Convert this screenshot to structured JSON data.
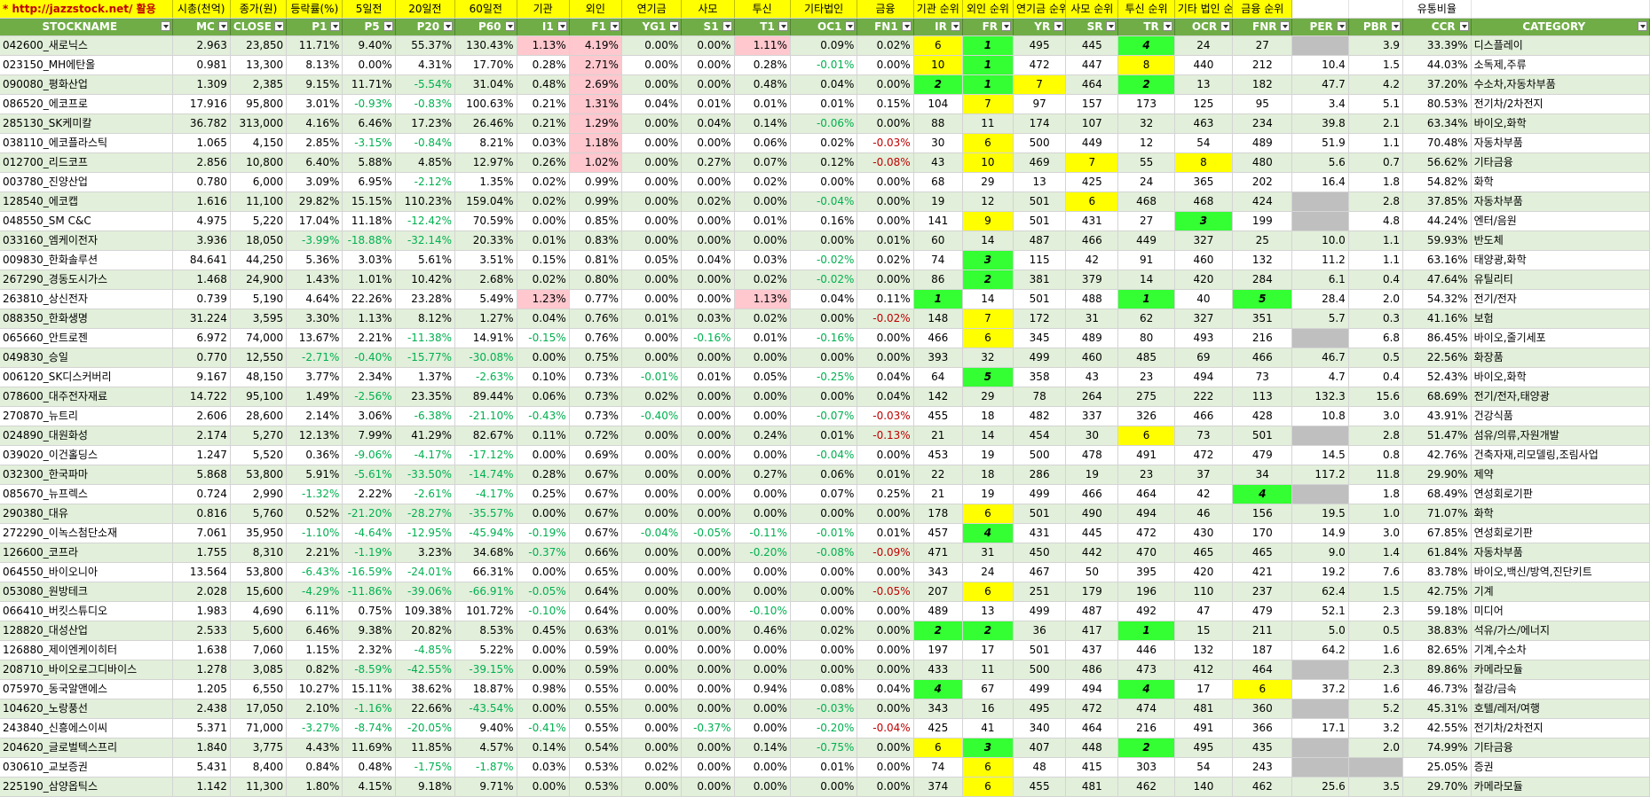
{
  "captions": [
    {
      "text": "* http://jazzstock.net/ 활용",
      "cls": "link",
      "name": "site-link"
    },
    {
      "text": "시총(천억)",
      "cls": "",
      "name": "caption-mc"
    },
    {
      "text": "종가(원)",
      "cls": "",
      "name": "caption-close"
    },
    {
      "text": "등락률(%)",
      "cls": "",
      "name": "caption-p1"
    },
    {
      "text": "5일전",
      "cls": "",
      "name": "caption-p5"
    },
    {
      "text": "20일전",
      "cls": "",
      "name": "caption-p20"
    },
    {
      "text": "60일전",
      "cls": "",
      "name": "caption-p60"
    },
    {
      "text": "기관",
      "cls": "",
      "name": "caption-i1"
    },
    {
      "text": "외인",
      "cls": "",
      "name": "caption-f1"
    },
    {
      "text": "연기금",
      "cls": "",
      "name": "caption-yg1"
    },
    {
      "text": "사모",
      "cls": "",
      "name": "caption-s1"
    },
    {
      "text": "투신",
      "cls": "",
      "name": "caption-t1"
    },
    {
      "text": "기타법인",
      "cls": "",
      "name": "caption-oc1"
    },
    {
      "text": "금융",
      "cls": "",
      "name": "caption-fn1"
    },
    {
      "text": "기관 순위",
      "cls": "",
      "name": "caption-ir"
    },
    {
      "text": "외인 순위",
      "cls": "",
      "name": "caption-fr"
    },
    {
      "text": "연기금 순위",
      "cls": "",
      "name": "caption-yr"
    },
    {
      "text": "사모 순위",
      "cls": "",
      "name": "caption-sr"
    },
    {
      "text": "투신 순위",
      "cls": "",
      "name": "caption-tr"
    },
    {
      "text": "기타 법인 순위",
      "cls": "",
      "name": "caption-ocr"
    },
    {
      "text": "금융 순위",
      "cls": "",
      "name": "caption-fnr"
    },
    {
      "text": "",
      "cls": "blank",
      "name": "caption-per"
    },
    {
      "text": "",
      "cls": "blank",
      "name": "caption-pbr"
    },
    {
      "text": "유통비율",
      "cls": "blank",
      "name": "caption-ccr"
    },
    {
      "text": "",
      "cls": "blank",
      "name": "caption-category"
    }
  ],
  "columns": [
    "STOCKNAME",
    "MC",
    "CLOSE",
    "P1",
    "P5",
    "P20",
    "P60",
    "I1",
    "F1",
    "YG1",
    "S1",
    "T1",
    "OC1",
    "FN1",
    "IR",
    "FR",
    "YR",
    "SR",
    "TR",
    "OCR",
    "FNR",
    "PER",
    "PBR",
    "CCR",
    "CATEGORY"
  ],
  "rows": [
    [
      "042600_새로닉스",
      "2.963",
      "23,850",
      "11.71%",
      "9.40%",
      "55.37%",
      "130.43%",
      "1.13%",
      "4.19%",
      "0.00%",
      "0.00%",
      "1.11%",
      "0.09%",
      "0.02%",
      "6",
      "1",
      "495",
      "445",
      "4",
      "24",
      "27",
      "",
      "3.9",
      "33.39%",
      "디스플레이"
    ],
    [
      "023150_MH에탄올",
      "0.981",
      "13,300",
      "8.13%",
      "0.00%",
      "4.31%",
      "17.70%",
      "0.28%",
      "2.71%",
      "0.00%",
      "0.00%",
      "0.28%",
      "-0.01%",
      "0.00%",
      "10",
      "1",
      "472",
      "447",
      "8",
      "440",
      "212",
      "10.4",
      "1.5",
      "44.03%",
      "소독제,주류"
    ],
    [
      "090080_평화산업",
      "1.309",
      "2,385",
      "9.15%",
      "11.71%",
      "-5.54%",
      "31.04%",
      "0.48%",
      "2.69%",
      "0.00%",
      "0.00%",
      "0.48%",
      "0.04%",
      "0.00%",
      "2",
      "1",
      "7",
      "464",
      "2",
      "13",
      "182",
      "47.7",
      "4.2",
      "37.20%",
      "수소차,자동차부품"
    ],
    [
      "086520_에코프로",
      "17.916",
      "95,800",
      "3.01%",
      "-0.93%",
      "-0.83%",
      "100.63%",
      "0.21%",
      "1.31%",
      "0.04%",
      "0.01%",
      "0.01%",
      "0.01%",
      "0.15%",
      "104",
      "7",
      "97",
      "157",
      "173",
      "125",
      "95",
      "3.4",
      "5.1",
      "80.53%",
      "전기차/2차전지"
    ],
    [
      "285130_SK케미칼",
      "36.782",
      "313,000",
      "4.16%",
      "6.46%",
      "17.23%",
      "26.46%",
      "0.21%",
      "1.29%",
      "0.00%",
      "0.04%",
      "0.14%",
      "-0.06%",
      "0.00%",
      "88",
      "11",
      "174",
      "107",
      "32",
      "463",
      "234",
      "39.8",
      "2.1",
      "63.34%",
      "바이오,화학"
    ],
    [
      "038110_에코플라스틱",
      "1.065",
      "4,150",
      "2.85%",
      "-3.15%",
      "-0.84%",
      "8.21%",
      "0.03%",
      "1.18%",
      "0.00%",
      "0.00%",
      "0.06%",
      "0.02%",
      "-0.03%",
      "30",
      "6",
      "500",
      "449",
      "12",
      "54",
      "489",
      "51.9",
      "1.1",
      "70.48%",
      "자동차부품"
    ],
    [
      "012700_리드코프",
      "2.856",
      "10,800",
      "6.40%",
      "5.88%",
      "4.85%",
      "12.97%",
      "0.26%",
      "1.02%",
      "0.00%",
      "0.27%",
      "0.07%",
      "0.12%",
      "-0.08%",
      "43",
      "10",
      "469",
      "7",
      "55",
      "8",
      "480",
      "5.6",
      "0.7",
      "56.62%",
      "기타금융"
    ],
    [
      "003780_진양산업",
      "0.780",
      "6,000",
      "3.09%",
      "6.95%",
      "-2.12%",
      "1.35%",
      "0.02%",
      "0.99%",
      "0.00%",
      "0.00%",
      "0.02%",
      "0.00%",
      "0.00%",
      "68",
      "29",
      "13",
      "425",
      "24",
      "365",
      "202",
      "16.4",
      "1.8",
      "54.82%",
      "화학"
    ],
    [
      "128540_에코캡",
      "1.616",
      "11,100",
      "29.82%",
      "15.15%",
      "110.23%",
      "159.04%",
      "0.02%",
      "0.99%",
      "0.00%",
      "0.02%",
      "0.00%",
      "-0.04%",
      "0.00%",
      "19",
      "12",
      "501",
      "6",
      "468",
      "468",
      "424",
      "",
      "2.8",
      "37.85%",
      "자동차부품"
    ],
    [
      "048550_SM C&C",
      "4.975",
      "5,220",
      "17.04%",
      "11.18%",
      "-12.42%",
      "70.59%",
      "0.00%",
      "0.85%",
      "0.00%",
      "0.00%",
      "0.01%",
      "0.16%",
      "0.00%",
      "141",
      "9",
      "501",
      "431",
      "27",
      "3",
      "199",
      "",
      "4.8",
      "44.24%",
      "엔터/음원"
    ],
    [
      "033160_엠케이전자",
      "3.936",
      "18,050",
      "-3.99%",
      "-18.88%",
      "-32.14%",
      "20.33%",
      "0.01%",
      "0.83%",
      "0.00%",
      "0.00%",
      "0.00%",
      "0.00%",
      "0.01%",
      "60",
      "14",
      "487",
      "466",
      "449",
      "327",
      "25",
      "10.0",
      "1.1",
      "59.93%",
      "반도체"
    ],
    [
      "009830_한화솔루션",
      "84.641",
      "44,250",
      "5.36%",
      "3.03%",
      "5.61%",
      "3.51%",
      "0.15%",
      "0.81%",
      "0.05%",
      "0.04%",
      "0.03%",
      "-0.02%",
      "0.02%",
      "74",
      "3",
      "115",
      "42",
      "91",
      "460",
      "132",
      "11.2",
      "1.1",
      "63.16%",
      "태양광,화학"
    ],
    [
      "267290_경동도시가스",
      "1.468",
      "24,900",
      "1.43%",
      "1.01%",
      "10.42%",
      "2.68%",
      "0.02%",
      "0.80%",
      "0.00%",
      "0.00%",
      "0.02%",
      "-0.02%",
      "0.00%",
      "86",
      "2",
      "381",
      "379",
      "14",
      "420",
      "284",
      "6.1",
      "0.4",
      "47.64%",
      "유틸리티"
    ],
    [
      "263810_상신전자",
      "0.739",
      "5,190",
      "4.64%",
      "22.26%",
      "23.28%",
      "5.49%",
      "1.23%",
      "0.77%",
      "0.00%",
      "0.00%",
      "1.13%",
      "0.04%",
      "0.11%",
      "1",
      "14",
      "501",
      "488",
      "1",
      "40",
      "5",
      "28.4",
      "2.0",
      "54.32%",
      "전기/전자"
    ],
    [
      "088350_한화생명",
      "31.224",
      "3,595",
      "3.30%",
      "1.13%",
      "8.12%",
      "1.27%",
      "0.04%",
      "0.76%",
      "0.01%",
      "0.03%",
      "0.02%",
      "0.00%",
      "-0.02%",
      "148",
      "7",
      "172",
      "31",
      "62",
      "327",
      "351",
      "5.7",
      "0.3",
      "41.16%",
      "보험"
    ],
    [
      "065660_안트로젠",
      "6.972",
      "74,000",
      "13.67%",
      "2.21%",
      "-11.38%",
      "14.91%",
      "-0.15%",
      "0.76%",
      "0.00%",
      "-0.16%",
      "0.01%",
      "-0.16%",
      "0.00%",
      "466",
      "6",
      "345",
      "489",
      "80",
      "493",
      "216",
      "",
      "6.8",
      "86.45%",
      "바이오,줄기세포"
    ],
    [
      "049830_승일",
      "0.770",
      "12,550",
      "-2.71%",
      "-0.40%",
      "-15.77%",
      "-30.08%",
      "0.00%",
      "0.75%",
      "0.00%",
      "0.00%",
      "0.00%",
      "0.00%",
      "0.00%",
      "393",
      "32",
      "499",
      "460",
      "485",
      "69",
      "466",
      "46.7",
      "0.5",
      "22.56%",
      "화장품"
    ],
    [
      "006120_SK디스커버리",
      "9.167",
      "48,150",
      "3.77%",
      "2.34%",
      "1.37%",
      "-2.63%",
      "0.10%",
      "0.73%",
      "-0.01%",
      "0.01%",
      "0.05%",
      "-0.25%",
      "0.04%",
      "64",
      "5",
      "358",
      "43",
      "23",
      "494",
      "73",
      "4.7",
      "0.4",
      "52.43%",
      "바이오,화학"
    ],
    [
      "078600_대주전자재료",
      "14.722",
      "95,100",
      "1.49%",
      "-2.56%",
      "23.35%",
      "89.44%",
      "0.06%",
      "0.73%",
      "0.02%",
      "0.00%",
      "0.00%",
      "0.00%",
      "0.04%",
      "142",
      "29",
      "78",
      "264",
      "275",
      "222",
      "113",
      "132.3",
      "15.6",
      "68.69%",
      "전기/전자,태양광"
    ],
    [
      "270870_뉴트리",
      "2.606",
      "28,600",
      "2.14%",
      "3.06%",
      "-6.38%",
      "-21.10%",
      "-0.43%",
      "0.73%",
      "-0.40%",
      "0.00%",
      "0.00%",
      "-0.07%",
      "-0.03%",
      "455",
      "18",
      "482",
      "337",
      "326",
      "466",
      "428",
      "10.8",
      "3.0",
      "43.91%",
      "건강식품"
    ],
    [
      "024890_대원화성",
      "2.174",
      "5,270",
      "12.13%",
      "7.99%",
      "41.29%",
      "82.67%",
      "0.11%",
      "0.72%",
      "0.00%",
      "0.00%",
      "0.24%",
      "0.01%",
      "-0.13%",
      "21",
      "14",
      "454",
      "30",
      "6",
      "73",
      "501",
      "",
      "2.8",
      "51.47%",
      "섬유/의류,자원개발"
    ],
    [
      "039020_이건홀딩스",
      "1.247",
      "5,520",
      "0.36%",
      "-9.06%",
      "-4.17%",
      "-17.12%",
      "0.00%",
      "0.69%",
      "0.00%",
      "0.00%",
      "0.00%",
      "-0.04%",
      "0.00%",
      "453",
      "19",
      "500",
      "478",
      "491",
      "472",
      "479",
      "14.5",
      "0.8",
      "42.76%",
      "건축자재,리모델링,조림사업"
    ],
    [
      "032300_한국파마",
      "5.868",
      "53,800",
      "5.91%",
      "-5.61%",
      "-33.50%",
      "-14.74%",
      "0.28%",
      "0.67%",
      "0.00%",
      "0.00%",
      "0.27%",
      "0.06%",
      "0.01%",
      "22",
      "18",
      "286",
      "19",
      "23",
      "37",
      "34",
      "117.2",
      "11.8",
      "29.90%",
      "제약"
    ],
    [
      "085670_뉴프렉스",
      "0.724",
      "2,990",
      "-1.32%",
      "2.22%",
      "-2.61%",
      "-4.17%",
      "0.25%",
      "0.67%",
      "0.00%",
      "0.00%",
      "0.00%",
      "0.07%",
      "0.25%",
      "21",
      "19",
      "499",
      "466",
      "464",
      "42",
      "4",
      "",
      "1.8",
      "68.49%",
      "연성회로기판"
    ],
    [
      "290380_대유",
      "0.816",
      "5,760",
      "0.52%",
      "-21.20%",
      "-28.27%",
      "-35.57%",
      "0.00%",
      "0.67%",
      "0.00%",
      "0.00%",
      "0.00%",
      "0.00%",
      "0.00%",
      "178",
      "6",
      "501",
      "490",
      "494",
      "46",
      "156",
      "19.5",
      "1.0",
      "71.07%",
      "화학"
    ],
    [
      "272290_이녹스첨단소재",
      "7.061",
      "35,950",
      "-1.10%",
      "-4.64%",
      "-12.95%",
      "-45.94%",
      "-0.19%",
      "0.67%",
      "-0.04%",
      "-0.05%",
      "-0.11%",
      "-0.01%",
      "0.01%",
      "457",
      "4",
      "431",
      "445",
      "472",
      "430",
      "170",
      "14.9",
      "3.0",
      "67.85%",
      "연성회로기판"
    ],
    [
      "126600_코프라",
      "1.755",
      "8,310",
      "2.21%",
      "-1.19%",
      "3.23%",
      "34.68%",
      "-0.37%",
      "0.66%",
      "0.00%",
      "0.00%",
      "-0.20%",
      "-0.08%",
      "-0.09%",
      "471",
      "31",
      "450",
      "442",
      "470",
      "465",
      "465",
      "9.0",
      "1.4",
      "61.84%",
      "자동차부품"
    ],
    [
      "064550_바이오니아",
      "13.564",
      "53,800",
      "-6.43%",
      "-16.59%",
      "-24.01%",
      "66.31%",
      "0.00%",
      "0.65%",
      "0.00%",
      "0.00%",
      "0.00%",
      "0.00%",
      "0.00%",
      "343",
      "24",
      "467",
      "50",
      "395",
      "420",
      "421",
      "19.2",
      "7.6",
      "83.78%",
      "바이오,백신/방역,진단키트"
    ],
    [
      "053080_원방테크",
      "2.028",
      "15,600",
      "-4.29%",
      "-11.86%",
      "-39.06%",
      "-66.91%",
      "-0.05%",
      "0.64%",
      "0.00%",
      "0.00%",
      "0.00%",
      "0.00%",
      "-0.05%",
      "207",
      "6",
      "251",
      "179",
      "196",
      "110",
      "237",
      "62.4",
      "1.5",
      "42.75%",
      "기계"
    ],
    [
      "066410_버킷스튜디오",
      "1.983",
      "4,690",
      "6.11%",
      "0.75%",
      "109.38%",
      "101.72%",
      "-0.10%",
      "0.64%",
      "0.00%",
      "0.00%",
      "-0.10%",
      "0.00%",
      "0.00%",
      "489",
      "13",
      "499",
      "487",
      "492",
      "47",
      "479",
      "52.1",
      "2.3",
      "59.18%",
      "미디어"
    ],
    [
      "128820_대성산업",
      "2.533",
      "5,600",
      "6.46%",
      "9.38%",
      "20.82%",
      "8.53%",
      "0.45%",
      "0.63%",
      "0.01%",
      "0.00%",
      "0.46%",
      "0.02%",
      "0.00%",
      "2",
      "2",
      "36",
      "417",
      "1",
      "15",
      "211",
      "5.0",
      "0.5",
      "38.83%",
      "석유/가스/에너지"
    ],
    [
      "126880_제이엔케이히터",
      "1.638",
      "7,060",
      "1.15%",
      "2.32%",
      "-4.85%",
      "5.22%",
      "0.00%",
      "0.59%",
      "0.00%",
      "0.00%",
      "0.00%",
      "0.00%",
      "0.00%",
      "197",
      "17",
      "501",
      "437",
      "446",
      "132",
      "187",
      "64.2",
      "1.6",
      "82.65%",
      "기계,수소차"
    ],
    [
      "208710_바이오로그디바이스",
      "1.278",
      "3,085",
      "0.82%",
      "-8.59%",
      "-42.55%",
      "-39.15%",
      "0.00%",
      "0.59%",
      "0.00%",
      "0.00%",
      "0.00%",
      "0.00%",
      "0.00%",
      "433",
      "11",
      "500",
      "486",
      "473",
      "412",
      "464",
      "",
      "2.3",
      "89.86%",
      "카메라모듈"
    ],
    [
      "075970_동국알앤에스",
      "1.205",
      "6,550",
      "10.27%",
      "15.11%",
      "38.62%",
      "18.87%",
      "0.98%",
      "0.55%",
      "0.00%",
      "0.00%",
      "0.94%",
      "0.08%",
      "0.04%",
      "4",
      "67",
      "499",
      "494",
      "4",
      "17",
      "6",
      "37.2",
      "1.6",
      "46.73%",
      "철강/금속"
    ],
    [
      "104620_노랑풍선",
      "2.438",
      "17,050",
      "2.10%",
      "-1.16%",
      "22.66%",
      "-43.54%",
      "0.00%",
      "0.55%",
      "0.00%",
      "0.00%",
      "0.00%",
      "-0.03%",
      "0.00%",
      "343",
      "16",
      "495",
      "472",
      "474",
      "481",
      "360",
      "",
      "5.2",
      "45.31%",
      "호텔/레저/여행"
    ],
    [
      "243840_신흥에스이씨",
      "5.371",
      "71,000",
      "-3.27%",
      "-8.74%",
      "-20.05%",
      "9.40%",
      "-0.41%",
      "0.55%",
      "0.00%",
      "-0.37%",
      "0.00%",
      "-0.20%",
      "-0.04%",
      "425",
      "41",
      "340",
      "464",
      "216",
      "491",
      "366",
      "17.1",
      "3.2",
      "42.55%",
      "전기차/2차전지"
    ],
    [
      "204620_글로벌텍스프리",
      "1.840",
      "3,775",
      "4.43%",
      "11.69%",
      "11.85%",
      "4.57%",
      "0.14%",
      "0.54%",
      "0.00%",
      "0.00%",
      "0.14%",
      "-0.75%",
      "0.00%",
      "6",
      "3",
      "407",
      "448",
      "2",
      "495",
      "435",
      "",
      "2.0",
      "74.99%",
      "기타금융"
    ],
    [
      "030610_교보증권",
      "5.431",
      "8,400",
      "0.84%",
      "0.48%",
      "-1.75%",
      "-1.87%",
      "0.03%",
      "0.53%",
      "0.02%",
      "0.00%",
      "0.00%",
      "0.01%",
      "0.00%",
      "74",
      "6",
      "48",
      "415",
      "303",
      "54",
      "243",
      "",
      "",
      "25.05%",
      "증권"
    ],
    [
      "225190_삼양옵틱스",
      "1.142",
      "11,300",
      "1.80%",
      "4.15%",
      "9.18%",
      "9.71%",
      "0.00%",
      "0.53%",
      "0.00%",
      "0.00%",
      "0.00%",
      "0.00%",
      "0.00%",
      "374",
      "6",
      "455",
      "481",
      "462",
      "140",
      "462",
      "25.6",
      "3.5",
      "29.70%",
      "카메라모듈"
    ]
  ],
  "highlights": {
    "pink": {
      "0": [
        7,
        8,
        11
      ],
      "1": [
        8
      ],
      "2": [
        8
      ],
      "3": [
        8
      ],
      "4": [
        8
      ],
      "5": [
        8
      ],
      "6": [
        8
      ],
      "13": [
        7,
        11
      ]
    },
    "yellow": {
      "0": [
        14
      ],
      "1": [
        14,
        18
      ],
      "2": [
        16
      ],
      "3": [
        15
      ],
      "5": [
        15
      ],
      "6": [
        15,
        17,
        19
      ],
      "8": [
        17
      ],
      "9": [
        15
      ],
      "14": [
        15
      ],
      "15": [
        15
      ],
      "20": [
        18
      ],
      "24": [
        15
      ],
      "28": [
        15
      ],
      "33": [
        20
      ],
      "36": [
        14
      ],
      "37": [
        15
      ],
      "38": [
        15
      ]
    },
    "green": {
      "0": [
        15,
        18
      ],
      "1": [
        15
      ],
      "2": [
        14,
        15,
        18
      ],
      "9": [
        19
      ],
      "11": [
        15
      ],
      "12": [
        15
      ],
      "13": [
        14,
        18,
        20
      ],
      "17": [
        15
      ],
      "23": [
        20
      ],
      "25": [
        15
      ],
      "30": [
        14,
        15,
        18
      ],
      "33": [
        14,
        18
      ],
      "36": [
        15,
        18
      ]
    },
    "gray_per": [
      0,
      8,
      9,
      15,
      20,
      23,
      32,
      34,
      36,
      37
    ]
  }
}
